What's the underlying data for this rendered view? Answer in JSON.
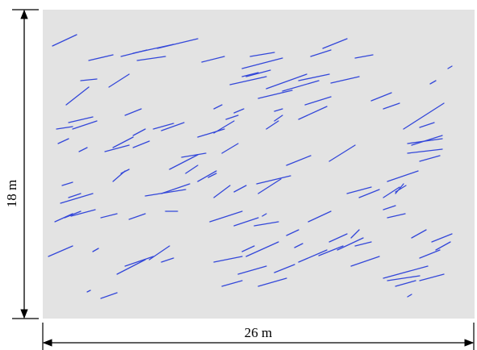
{
  "dimensions": {
    "height_label": "18 m",
    "width_label": "26 m",
    "height_m": 18,
    "width_m": 26
  },
  "colors": {
    "domain_fill": "#e3e3e3",
    "fracture_stroke": "#3347d9",
    "dimension_line": "#000000"
  },
  "fracture_style": "short oblique line segments, dense random distribution"
}
